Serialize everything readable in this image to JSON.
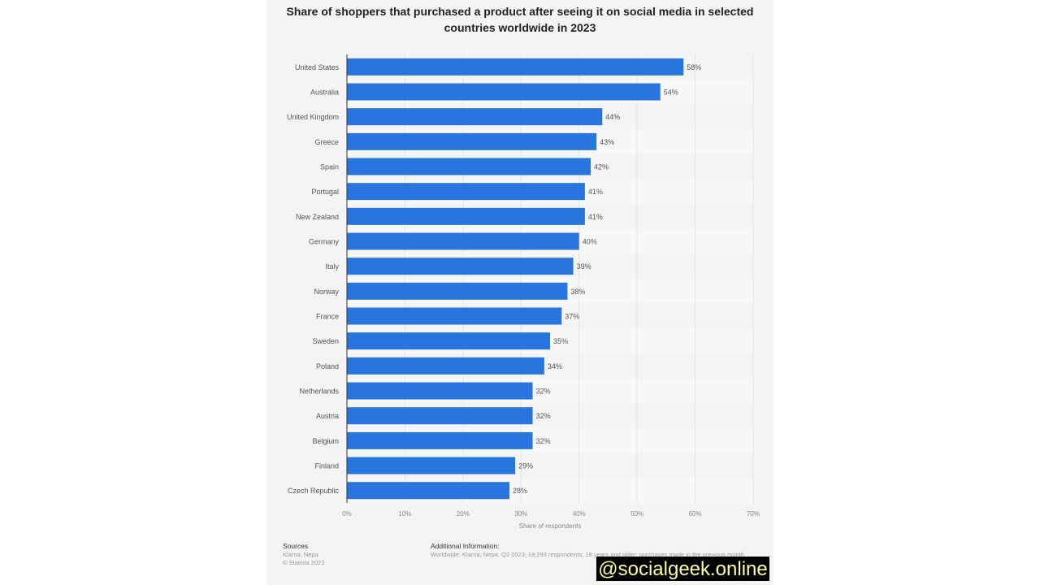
{
  "chart_data": {
    "type": "bar",
    "orientation": "horizontal",
    "title": "Share of shoppers that purchased a product after seeing it on social media in selected countries worldwide in 2023",
    "categories": [
      "United States",
      "Australia",
      "United Kingdom",
      "Greece",
      "Spain",
      "Portugal",
      "New Zealand",
      "Germany",
      "Italy",
      "Norway",
      "France",
      "Sweden",
      "Poland",
      "Netherlands",
      "Austria",
      "Belgium",
      "Finland",
      "Czech Republic"
    ],
    "values": [
      58,
      54,
      44,
      43,
      42,
      41,
      41,
      40,
      39,
      38,
      37,
      35,
      34,
      32,
      32,
      32,
      29,
      28
    ],
    "value_suffix": "%",
    "xlabel": "Share of respondents",
    "xlim": [
      0,
      70
    ],
    "xticks": [
      "0%",
      "10%",
      "20%",
      "30%",
      "40%",
      "50%",
      "60%",
      "70%"
    ],
    "grid": true,
    "bar_color": "#2876dd"
  },
  "footer": {
    "sources_label": "Sources",
    "sources": "Klarna; Nepa",
    "copyright": "© Statista 2023",
    "additional_label": "Additional Information:",
    "additional": "Worldwide; Klarna; Nepa; Q2 2023; 19,293 respondents; 18 years and older; purchases made in the previous month"
  },
  "watermark": "@socialgeek.online"
}
